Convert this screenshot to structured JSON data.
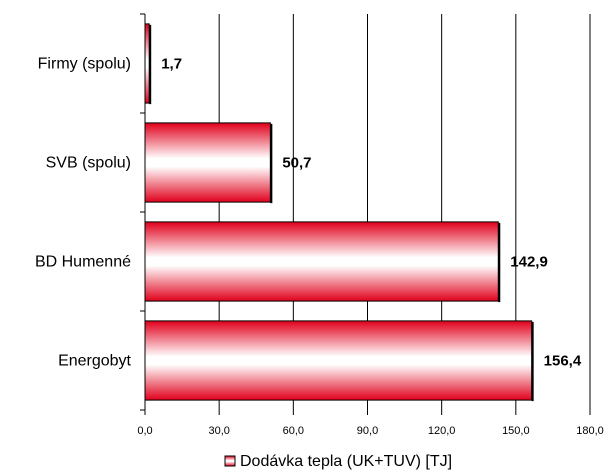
{
  "chart_data": {
    "type": "bar",
    "orientation": "horizontal",
    "categories": [
      "Firmy (spolu)",
      "SVB (spolu)",
      "BD Humenné",
      "Energobyt"
    ],
    "series": [
      {
        "name": "Dodávka tepla (UK+TUV) [TJ]",
        "values": [
          1.7,
          50.7,
          142.9,
          156.4
        ]
      }
    ],
    "data_labels": [
      "1,7",
      "50,7",
      "142,9",
      "156,4"
    ],
    "x_ticks": [
      "0,0",
      "30,0",
      "60,0",
      "90,0",
      "120,0",
      "150,0",
      "180,0"
    ],
    "xlim": [
      0,
      180
    ],
    "grid": "vertical",
    "legend": "bottom",
    "colors": {
      "bar_edge": "#e0001b",
      "bar_center": "#ffffff",
      "grid": "#000000"
    }
  }
}
